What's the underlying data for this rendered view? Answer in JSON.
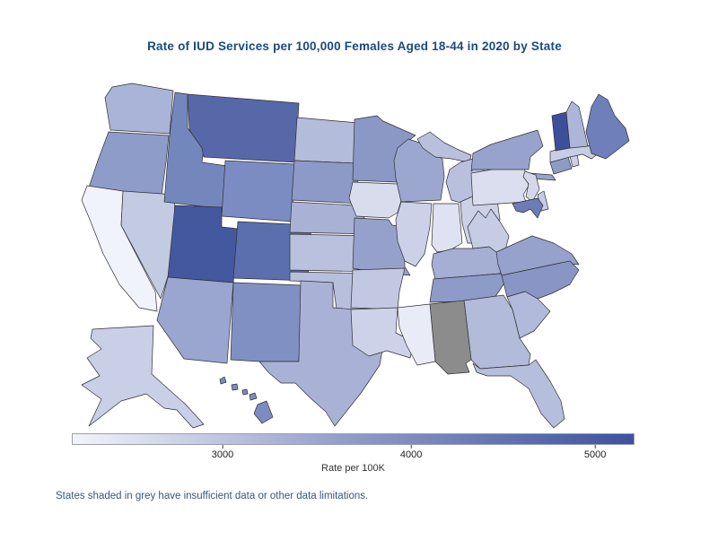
{
  "title": {
    "text": "Rate of IUD Services per 100,000 Females Aged 18-44 in 2020 by State",
    "color": "#1b4a7e"
  },
  "footnote": {
    "text": "States shaded in grey have insufficient data or other data limitations.",
    "color": "#33587e"
  },
  "legend": {
    "axis_label": "Rate per 100K",
    "ticks": [
      {
        "label": "3000",
        "pos_pct": 26.8
      },
      {
        "label": "4000",
        "pos_pct": 60.3
      },
      {
        "label": "5000",
        "pos_pct": 93.0
      }
    ],
    "gradient_start": "#f2f4fa",
    "gradient_mid": "#8e9bc9",
    "gradient_end": "#3d519f",
    "insufficient_data_color": "#8c8c8c"
  },
  "chart_data": {
    "type": "choropleth_map",
    "title": "Rate of IUD Services per 100,000 Females Aged 18-44 in 2020 by State",
    "colorbar": {
      "label": "Rate per 100K",
      "ticks": [
        3000,
        4000,
        5000
      ],
      "domain": [
        2200,
        5200
      ],
      "min_color": "#f2f4fa",
      "max_color": "#3d519f"
    },
    "no_data_states": [
      "Alabama"
    ],
    "states": [
      {
        "abbr": "WA",
        "name": "Washington",
        "value": 3300,
        "color": "#aab4d8"
      },
      {
        "abbr": "OR",
        "name": "Oregon",
        "value": 3650,
        "color": "#8e9cc9"
      },
      {
        "abbr": "CA",
        "name": "California",
        "value": 2250,
        "color": "#f1f3fa"
      },
      {
        "abbr": "NV",
        "name": "Nevada",
        "value": 2900,
        "color": "#c3cbe3"
      },
      {
        "abbr": "ID",
        "name": "Idaho",
        "value": 4050,
        "color": "#7487bd"
      },
      {
        "abbr": "MT",
        "name": "Montana",
        "value": 4500,
        "color": "#5668a8"
      },
      {
        "abbr": "WY",
        "name": "Wyoming",
        "value": 3950,
        "color": "#7b8cc2"
      },
      {
        "abbr": "UT",
        "name": "Utah",
        "value": 4800,
        "color": "#44589f"
      },
      {
        "abbr": "CO",
        "name": "Colorado",
        "value": 4400,
        "color": "#5b6fae"
      },
      {
        "abbr": "AZ",
        "name": "Arizona",
        "value": 3500,
        "color": "#9aa6d0"
      },
      {
        "abbr": "NM",
        "name": "New Mexico",
        "value": 3850,
        "color": "#8190c3"
      },
      {
        "abbr": "ND",
        "name": "North Dakota",
        "value": 3150,
        "color": "#b4bcdb"
      },
      {
        "abbr": "SD",
        "name": "South Dakota",
        "value": 3680,
        "color": "#8d9ac7"
      },
      {
        "abbr": "NE",
        "name": "Nebraska",
        "value": 3280,
        "color": "#a9b2d5"
      },
      {
        "abbr": "KS",
        "name": "Kansas",
        "value": 3080,
        "color": "#b9c1de"
      },
      {
        "abbr": "OK",
        "name": "Oklahoma",
        "value": 3100,
        "color": "#b7bfdd"
      },
      {
        "abbr": "TX",
        "name": "Texas",
        "value": 3300,
        "color": "#a9b2d6"
      },
      {
        "abbr": "MN",
        "name": "Minnesota",
        "value": 3700,
        "color": "#8b98c6"
      },
      {
        "abbr": "IA",
        "name": "Iowa",
        "value": 2600,
        "color": "#d8dcec"
      },
      {
        "abbr": "MO",
        "name": "Missouri",
        "value": 3550,
        "color": "#96a1cb"
      },
      {
        "abbr": "AR",
        "name": "Arkansas",
        "value": 2900,
        "color": "#c2c8e2"
      },
      {
        "abbr": "LA",
        "name": "Louisiana",
        "value": 2750,
        "color": "#cdd2e8"
      },
      {
        "abbr": "WI",
        "name": "Wisconsin",
        "value": 3480,
        "color": "#9ca7cf"
      },
      {
        "abbr": "IL",
        "name": "Illinois",
        "value": 2750,
        "color": "#ccd1e8"
      },
      {
        "abbr": "MI",
        "name": "Michigan",
        "value": 3100,
        "color": "#b9c0de"
      },
      {
        "abbr": "IN",
        "name": "Indiana",
        "value": 2500,
        "color": "#dfe2f0"
      },
      {
        "abbr": "OH",
        "name": "Ohio",
        "value": 2760,
        "color": "#ccd1e7"
      },
      {
        "abbr": "KY",
        "name": "Kentucky",
        "value": 3350,
        "color": "#a5aed3"
      },
      {
        "abbr": "TN",
        "name": "Tennessee",
        "value": 3680,
        "color": "#8e9ac7"
      },
      {
        "abbr": "WV",
        "name": "West Virginia",
        "value": 2850,
        "color": "#c6cce4"
      },
      {
        "abbr": "VA",
        "name": "Virginia",
        "value": 3560,
        "color": "#96a1cc"
      },
      {
        "abbr": "NC",
        "name": "North Carolina",
        "value": 3730,
        "color": "#8995c4"
      },
      {
        "abbr": "SC",
        "name": "South Carolina",
        "value": 3180,
        "color": "#b2badb"
      },
      {
        "abbr": "GA",
        "name": "Georgia",
        "value": 3170,
        "color": "#b3bbda"
      },
      {
        "abbr": "AL",
        "name": "Alabama",
        "value": null,
        "color": "#8c8c8c"
      },
      {
        "abbr": "MS",
        "name": "Mississippi",
        "value": 2350,
        "color": "#e9ecf6"
      },
      {
        "abbr": "FL",
        "name": "Florida",
        "value": 3130,
        "color": "#b6bedd"
      },
      {
        "abbr": "PA",
        "name": "Pennsylvania",
        "value": 2550,
        "color": "#dbdeee"
      },
      {
        "abbr": "NY",
        "name": "New York",
        "value": 3550,
        "color": "#97a3cc"
      },
      {
        "abbr": "NJ",
        "name": "New Jersey",
        "value": 2650,
        "color": "#d4d8ea"
      },
      {
        "abbr": "DE",
        "name": "Delaware",
        "value": 2850,
        "color": "#c6cce5"
      },
      {
        "abbr": "MD",
        "name": "Maryland",
        "value": 4150,
        "color": "#6c7db6"
      },
      {
        "abbr": "CT",
        "name": "Connecticut",
        "value": 3650,
        "color": "#8d9bc7"
      },
      {
        "abbr": "RI",
        "name": "Rhode Island",
        "value": 2780,
        "color": "#ccd0e7"
      },
      {
        "abbr": "MA",
        "name": "Massachusetts",
        "value": 2800,
        "color": "#c8cde6"
      },
      {
        "abbr": "VT",
        "name": "Vermont",
        "value": 4950,
        "color": "#3c4f9b"
      },
      {
        "abbr": "NH",
        "name": "New Hampshire",
        "value": 3250,
        "color": "#adb6d8"
      },
      {
        "abbr": "ME",
        "name": "Maine",
        "value": 4100,
        "color": "#6e7fba"
      },
      {
        "abbr": "AK",
        "name": "Alaska",
        "value": 2850,
        "color": "#c9cfe7"
      },
      {
        "abbr": "HI",
        "name": "Hawaii",
        "value": 3900,
        "color": "#7d8cc0"
      }
    ]
  }
}
